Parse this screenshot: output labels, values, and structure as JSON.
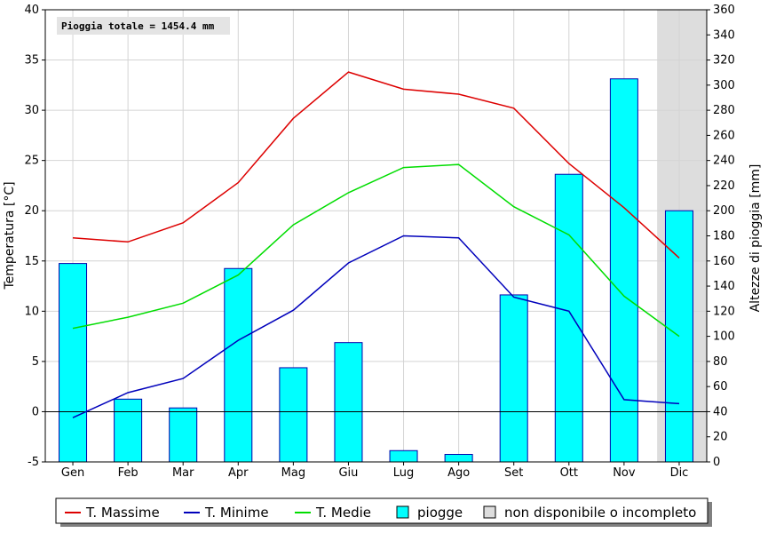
{
  "chart_data": {
    "type": "bar",
    "annotation": "Pioggia totale = 1454.4 mm",
    "categories": [
      "Gen",
      "Feb",
      "Mar",
      "Apr",
      "Mag",
      "Giu",
      "Lug",
      "Ago",
      "Set",
      "Ott",
      "Nov",
      "Dic"
    ],
    "ylabel": "Temperatura [°C]",
    "ylabel_right": "Altezze di pioggia [mm]",
    "ylim": [
      -5,
      40
    ],
    "ylim_right": [
      0,
      360
    ],
    "yticks": [
      "-5",
      "0",
      "5",
      "10",
      "15",
      "20",
      "25",
      "30",
      "35",
      "40"
    ],
    "yticks_right": [
      "0",
      "20",
      "40",
      "60",
      "80",
      "100",
      "120",
      "140",
      "160",
      "180",
      "200",
      "220",
      "240",
      "260",
      "280",
      "300",
      "320",
      "340",
      "360"
    ],
    "grid": true,
    "legend_position": "bottom",
    "unavailable_months": [
      "Dic"
    ],
    "bars": {
      "name": "piogge",
      "axis": "right",
      "color": "#00ffff",
      "edge_color": "#0000aa",
      "values": [
        158,
        50,
        43,
        154,
        75,
        95,
        9,
        6,
        133,
        229,
        305,
        200
      ]
    },
    "series": [
      {
        "name": "T. Massime",
        "color": "#dd0000",
        "values": [
          17.3,
          16.9,
          18.8,
          22.8,
          29.2,
          33.8,
          32.1,
          31.6,
          30.2,
          24.7,
          20.3,
          15.3
        ]
      },
      {
        "name": "T. Minime",
        "color": "#0000bb",
        "values": [
          -0.6,
          1.9,
          3.3,
          7.1,
          10.1,
          14.8,
          17.5,
          17.3,
          11.4,
          10.0,
          1.2,
          0.8
        ]
      },
      {
        "name": "T. Medie",
        "color": "#00dd00",
        "values": [
          8.3,
          9.4,
          10.8,
          13.6,
          18.6,
          21.8,
          24.3,
          24.6,
          20.4,
          17.6,
          11.5,
          7.5
        ]
      }
    ],
    "legend": [
      {
        "label": "T. Massime",
        "kind": "line",
        "color": "#dd0000"
      },
      {
        "label": "T. Minime",
        "kind": "line",
        "color": "#0000bb"
      },
      {
        "label": "T. Medie",
        "kind": "line",
        "color": "#00dd00"
      },
      {
        "label": "piogge",
        "kind": "box",
        "color": "#00ffff"
      },
      {
        "label": "non disponibile o incompleto",
        "kind": "box",
        "color": "#dddddd"
      }
    ]
  }
}
